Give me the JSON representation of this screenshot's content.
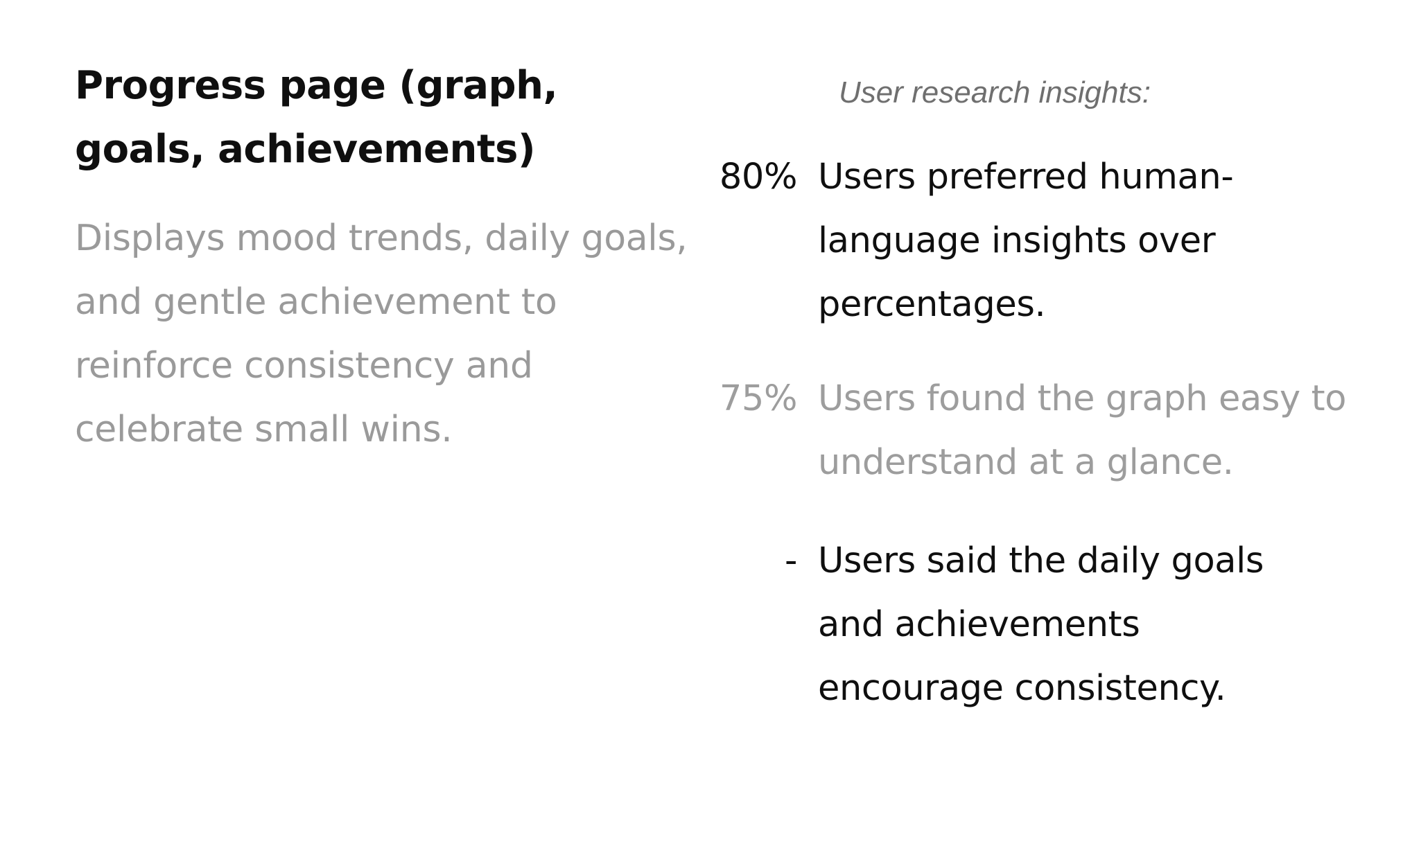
{
  "left": {
    "title": "Progress page (graph, goals, achievements)",
    "description": "Displays mood trends, daily goals, and gentle achievement to reinforce consistency and celebrate small wins."
  },
  "research": {
    "heading": "User research insights:",
    "insights": [
      {
        "stat": "80%",
        "text": "Users preferred human-language insights over percentages."
      },
      {
        "stat": "75%",
        "text": "Users found the graph easy to understand at a glance."
      },
      {
        "stat": "-",
        "text": "Users said the daily goals and achievements encourage consistency."
      }
    ]
  },
  "colors": {
    "dark_text": "#0f0f0f",
    "muted_text": "#9d9d9d",
    "heading_text": "#6f6f6f",
    "background": "#ffffff"
  }
}
